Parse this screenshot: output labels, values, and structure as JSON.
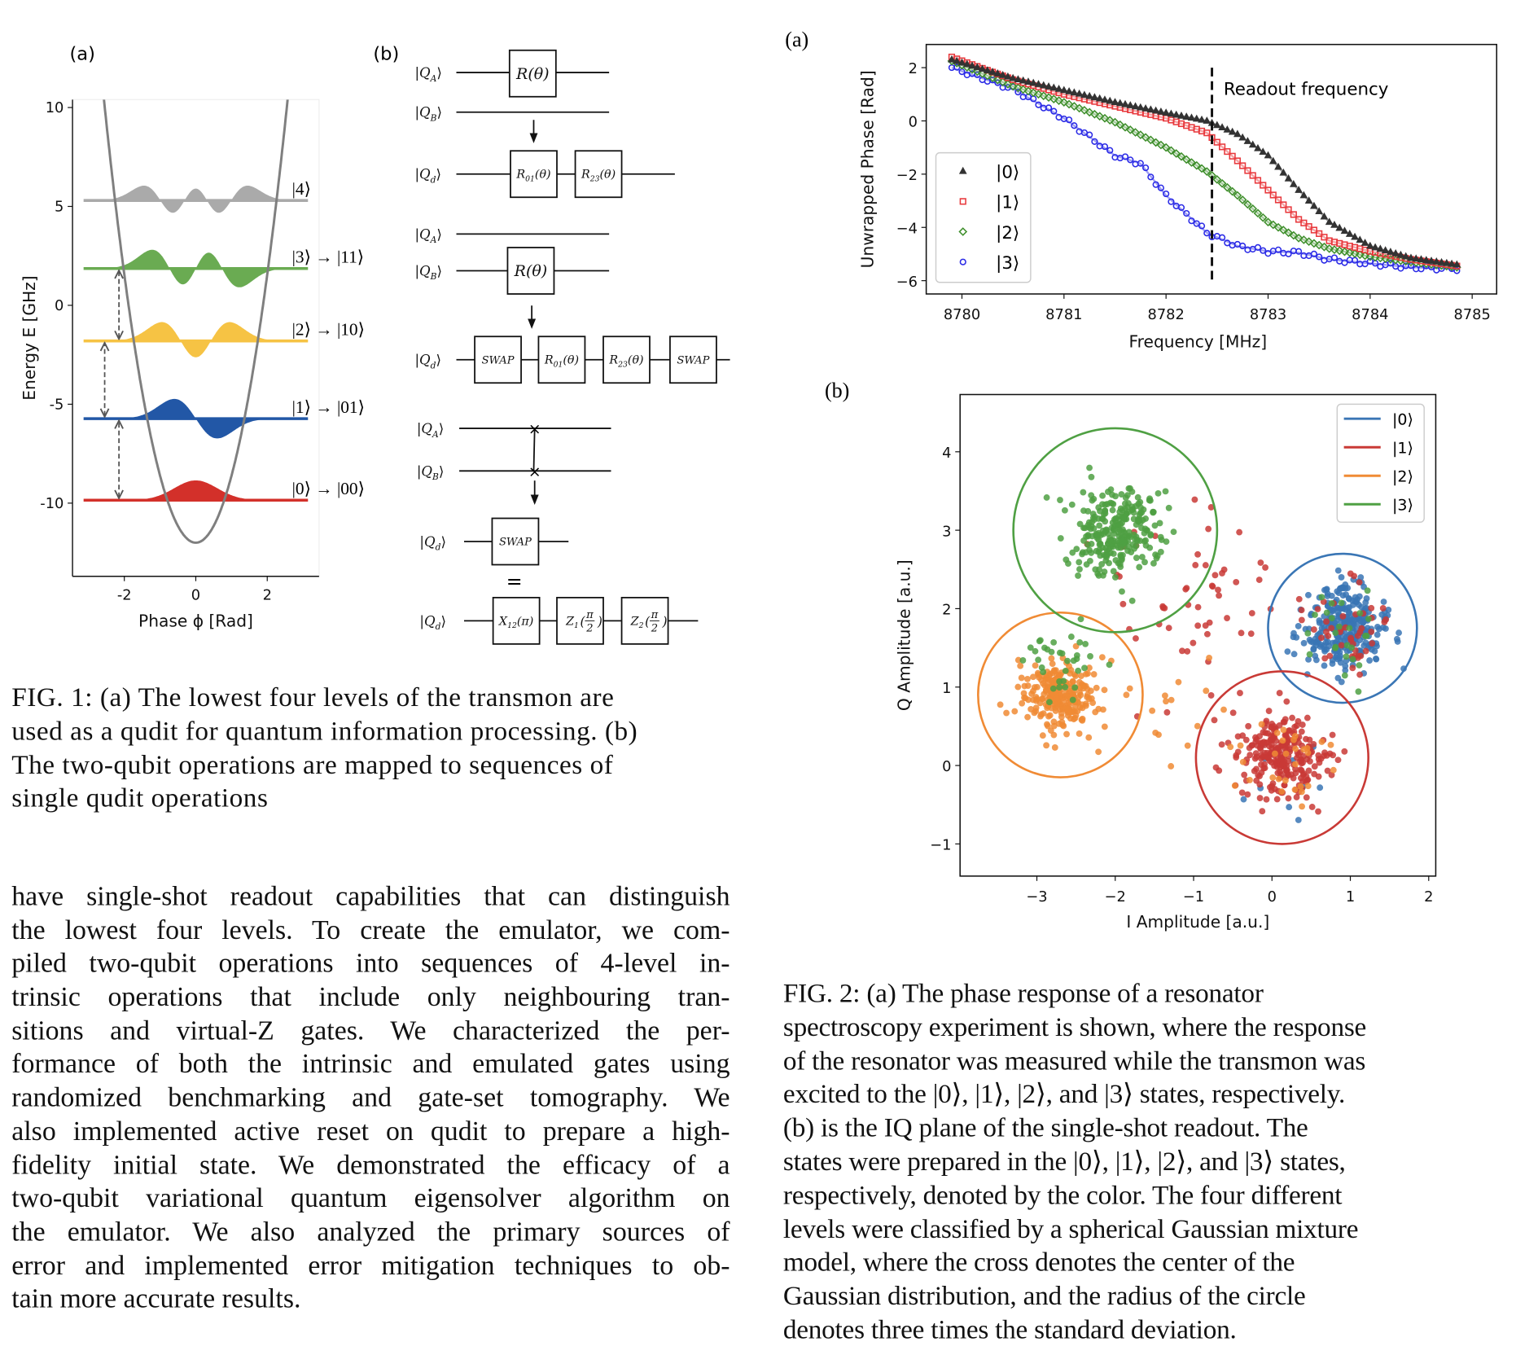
{
  "figure1": {
    "caption_lines": [
      "FIG. 1: (a) The lowest four levels of the transmon are",
      "used as a qudit for quantum information processing. (b)",
      "The two-qubit operations are mapped to sequences of",
      "single qudit operations"
    ],
    "circuit": {
      "panel_label": "(b)",
      "ket_open": "|",
      "ket_close": "⟩",
      "ket_base": "Q",
      "wire_subscripts": {
        "a": "A",
        "b": "B",
        "d": "d"
      },
      "block1_gate": {
        "name": "R",
        "sub": "",
        "arg": "(θ)"
      },
      "block1_result": [
        {
          "name": "R",
          "sub": "01",
          "arg": "(θ)"
        },
        {
          "name": "R",
          "sub": "23",
          "arg": "(θ)"
        }
      ],
      "block2_gate": {
        "name": "R",
        "sub": "",
        "arg": "(θ)"
      },
      "block2_result": [
        {
          "name": "SWAP",
          "sub": "",
          "arg": ""
        },
        {
          "name": "R",
          "sub": "01",
          "arg": "(θ)"
        },
        {
          "name": "R",
          "sub": "23",
          "arg": "(θ)"
        },
        {
          "name": "SWAP",
          "sub": "",
          "arg": ""
        }
      ],
      "block3_swap_symbol": "×",
      "block3_result": {
        "name": "SWAP",
        "sub": "",
        "arg": ""
      },
      "equals": "=",
      "decomposition": [
        {
          "name": "X",
          "sub": "12",
          "arg": "(π)"
        },
        {
          "name": "Z",
          "sub": "1",
          "arg_num": "π",
          "arg_den": "2"
        },
        {
          "name": "Z",
          "sub": "2",
          "arg_num": "π",
          "arg_den": "2"
        }
      ]
    }
  },
  "body_text_lines": [
    "have single-shot readout capabilities that can distinguish",
    "the lowest four levels. To create the emulator, we com-",
    "piled two-qubit operations into sequences of 4-level in-",
    "trinsic operations that include only neighbouring tran-",
    "sitions and virtual-Z gates. We characterized the per-",
    "formance of both the intrinsic and emulated gates using",
    "randomized benchmarking and gate-set tomography. We",
    "also implemented active reset on qudit to prepare a high-",
    "fidelity initial state. We demonstrated the efficacy of a",
    "two-qubit variational quantum eigensolver algorithm on",
    "the emulator. We also analyzed the primary sources of",
    "error and implemented error mitigation techniques to ob-",
    "tain more accurate results."
  ],
  "figure2": {
    "caption_lines": [
      "FIG. 2: (a) The phase response of a resonator",
      "spectroscopy experiment is shown, where the response",
      "of the resonator was measured while the transmon was",
      "excited to the |0⟩, |1⟩, |2⟩, and |3⟩ states, respectively.",
      "(b) is the IQ plane of the single-shot readout. The",
      "states were prepared in the |0⟩, |1⟩, |2⟩, and |3⟩ states,",
      "respectively, denoted by the color. The four different",
      "levels were classified by a spherical Gaussian mixture",
      "model, where the cross denotes the center of the",
      "Gaussian distribution, and the radius of the circle",
      "denotes three times the standard deviation."
    ]
  },
  "chart_data": [
    {
      "type": "line",
      "panel_label": "(a)",
      "xlabel": "Phase ϕ [Rad]",
      "ylabel": "Energy E [GHz]",
      "xlim": [
        -3.45,
        3.45
      ],
      "ylim": [
        -13.7,
        10.4
      ],
      "xticks": [
        "-2",
        "0",
        "2"
      ],
      "yticks": [
        "10",
        "5",
        "0",
        "-5",
        "-10"
      ],
      "potential": {
        "shape": "parabola",
        "min_energy": -12,
        "curvature": 3.39,
        "color": "#7f7f7f"
      },
      "phase_range": [
        -3.14,
        3.14
      ],
      "levels": [
        {
          "label": "|0⟩ → |00⟩",
          "energy": -9.85,
          "color": "#d3302a"
        },
        {
          "label": "|1⟩ → |01⟩",
          "energy": -5.73,
          "color": "#2257a6"
        },
        {
          "label": "|2⟩ → |10⟩",
          "energy": -1.8,
          "color": "#f6c344"
        },
        {
          "label": "|3⟩ → |11⟩",
          "energy": 1.86,
          "color": "#6aab52"
        },
        {
          "label": "|4⟩",
          "energy": 5.3,
          "color": "#aaaaaa"
        }
      ],
      "transition_arrows": [
        {
          "from_level": 0,
          "to_level": 1,
          "phase": -2.15
        },
        {
          "from_level": 1,
          "to_level": 2,
          "phase": -2.55
        },
        {
          "from_level": 2,
          "to_level": 3,
          "phase": -2.15
        }
      ]
    },
    {
      "type": "scatter",
      "panel_label": "(a)",
      "xlabel": "Frequency [MHz]",
      "ylabel": "Unwrapped Phase [Rad]",
      "xlim": [
        8779.65,
        8785.24
      ],
      "ylim": [
        -6.5,
        2.87
      ],
      "xticks": [
        "8780",
        "8781",
        "8782",
        "8783",
        "8784",
        "8785"
      ],
      "yticks": [
        "2",
        "0",
        "−2",
        "−4",
        "−6"
      ],
      "annotation": {
        "text": "Readout frequency",
        "x": 8782.45,
        "style": "dashed vertical line"
      },
      "legend": "center-left",
      "series": [
        {
          "name": "|0⟩",
          "marker": "triangle",
          "color": "#333333",
          "x": [
            8779.9,
            8780.5,
            8781,
            8781.5,
            8782,
            8782.4,
            8782.7,
            8783,
            8783.3,
            8783.6,
            8784,
            8784.4,
            8784.85
          ],
          "y": [
            2.3,
            1.6,
            1.15,
            0.7,
            0.3,
            0.0,
            -0.5,
            -1.3,
            -2.6,
            -3.8,
            -4.7,
            -5.15,
            -5.4
          ]
        },
        {
          "name": "|1⟩",
          "marker": "square",
          "color": "#e8383c",
          "x": [
            8779.9,
            8780.5,
            8781,
            8781.5,
            8782,
            8782.4,
            8782.7,
            8783,
            8783.3,
            8783.6,
            8784,
            8784.4,
            8784.85
          ],
          "y": [
            2.4,
            1.55,
            1.0,
            0.55,
            0.1,
            -0.45,
            -1.5,
            -2.6,
            -3.7,
            -4.5,
            -4.9,
            -5.2,
            -5.45
          ]
        },
        {
          "name": "|2⟩",
          "marker": "diamond",
          "color": "#3f8f2c",
          "x": [
            8779.9,
            8780.5,
            8781,
            8781.5,
            8782,
            8782.4,
            8782.7,
            8783,
            8783.3,
            8783.6,
            8784,
            8784.4,
            8784.85
          ],
          "y": [
            2.25,
            1.3,
            0.7,
            -0.05,
            -1.0,
            -1.9,
            -2.8,
            -3.8,
            -4.4,
            -4.8,
            -5.1,
            -5.3,
            -5.5
          ]
        },
        {
          "name": "|3⟩",
          "marker": "circle",
          "color": "#2a2ae6",
          "x": [
            8779.9,
            8780.5,
            8781,
            8781.5,
            8781.75,
            8782,
            8782.4,
            8782.7,
            8783,
            8783.3,
            8783.6,
            8784,
            8784.4,
            8784.85
          ],
          "y": [
            2.0,
            1.2,
            0.1,
            -1.3,
            -1.6,
            -2.8,
            -4.2,
            -4.7,
            -4.9,
            -4.95,
            -5.2,
            -5.35,
            -5.5,
            -5.55
          ]
        }
      ]
    },
    {
      "type": "scatter",
      "panel_label": "(b)",
      "xlabel": "I Amplitude [a.u.]",
      "ylabel": "Q Amplitude [a.u.]",
      "xlim": [
        -3.98,
        2.09
      ],
      "ylim": [
        -1.41,
        4.73
      ],
      "xticks": [
        "−3",
        "−2",
        "−1",
        "0",
        "1",
        "2"
      ],
      "yticks": [
        "−1",
        "0",
        "1",
        "2",
        "3",
        "4"
      ],
      "legend": "top-right",
      "series": [
        {
          "name": "|0⟩",
          "color": "#3a76b5",
          "center": [
            0.9,
            1.75
          ],
          "circle_radius": 0.95,
          "cluster_std": 0.27,
          "cluster_points": 300
        },
        {
          "name": "|1⟩",
          "color": "#c93a36",
          "center": [
            0.13,
            0.1
          ],
          "circle_radius": 1.1,
          "cluster_std": 0.28,
          "cluster_points": 260
        },
        {
          "name": "|2⟩",
          "color": "#f08b35",
          "center": [
            -2.7,
            0.9
          ],
          "circle_radius": 1.05,
          "cluster_std": 0.24,
          "cluster_points": 250
        },
        {
          "name": "|3⟩",
          "color": "#4fa043",
          "center": [
            -2.0,
            3.0
          ],
          "circle_radius": 1.3,
          "cluster_std": 0.3,
          "cluster_points": 270
        }
      ],
      "stray_points": [
        {
          "series": 0,
          "near": [
            0.15,
            0.1
          ],
          "std": 0.35,
          "count": 12
        },
        {
          "series": 1,
          "near": [
            0.9,
            1.75
          ],
          "std": 0.3,
          "count": 45
        },
        {
          "series": 1,
          "near": [
            -1.0,
            2.0
          ],
          "std": 0.6,
          "count": 55
        },
        {
          "series": 2,
          "near": [
            0.15,
            0.1
          ],
          "std": 0.35,
          "count": 30
        },
        {
          "series": 2,
          "near": [
            -1.3,
            0.6
          ],
          "std": 0.4,
          "count": 15
        },
        {
          "series": 3,
          "near": [
            -2.7,
            1.3
          ],
          "std": 0.25,
          "count": 35
        },
        {
          "series": 3,
          "near": [
            0.95,
            1.75
          ],
          "std": 0.25,
          "count": 25
        }
      ]
    }
  ]
}
